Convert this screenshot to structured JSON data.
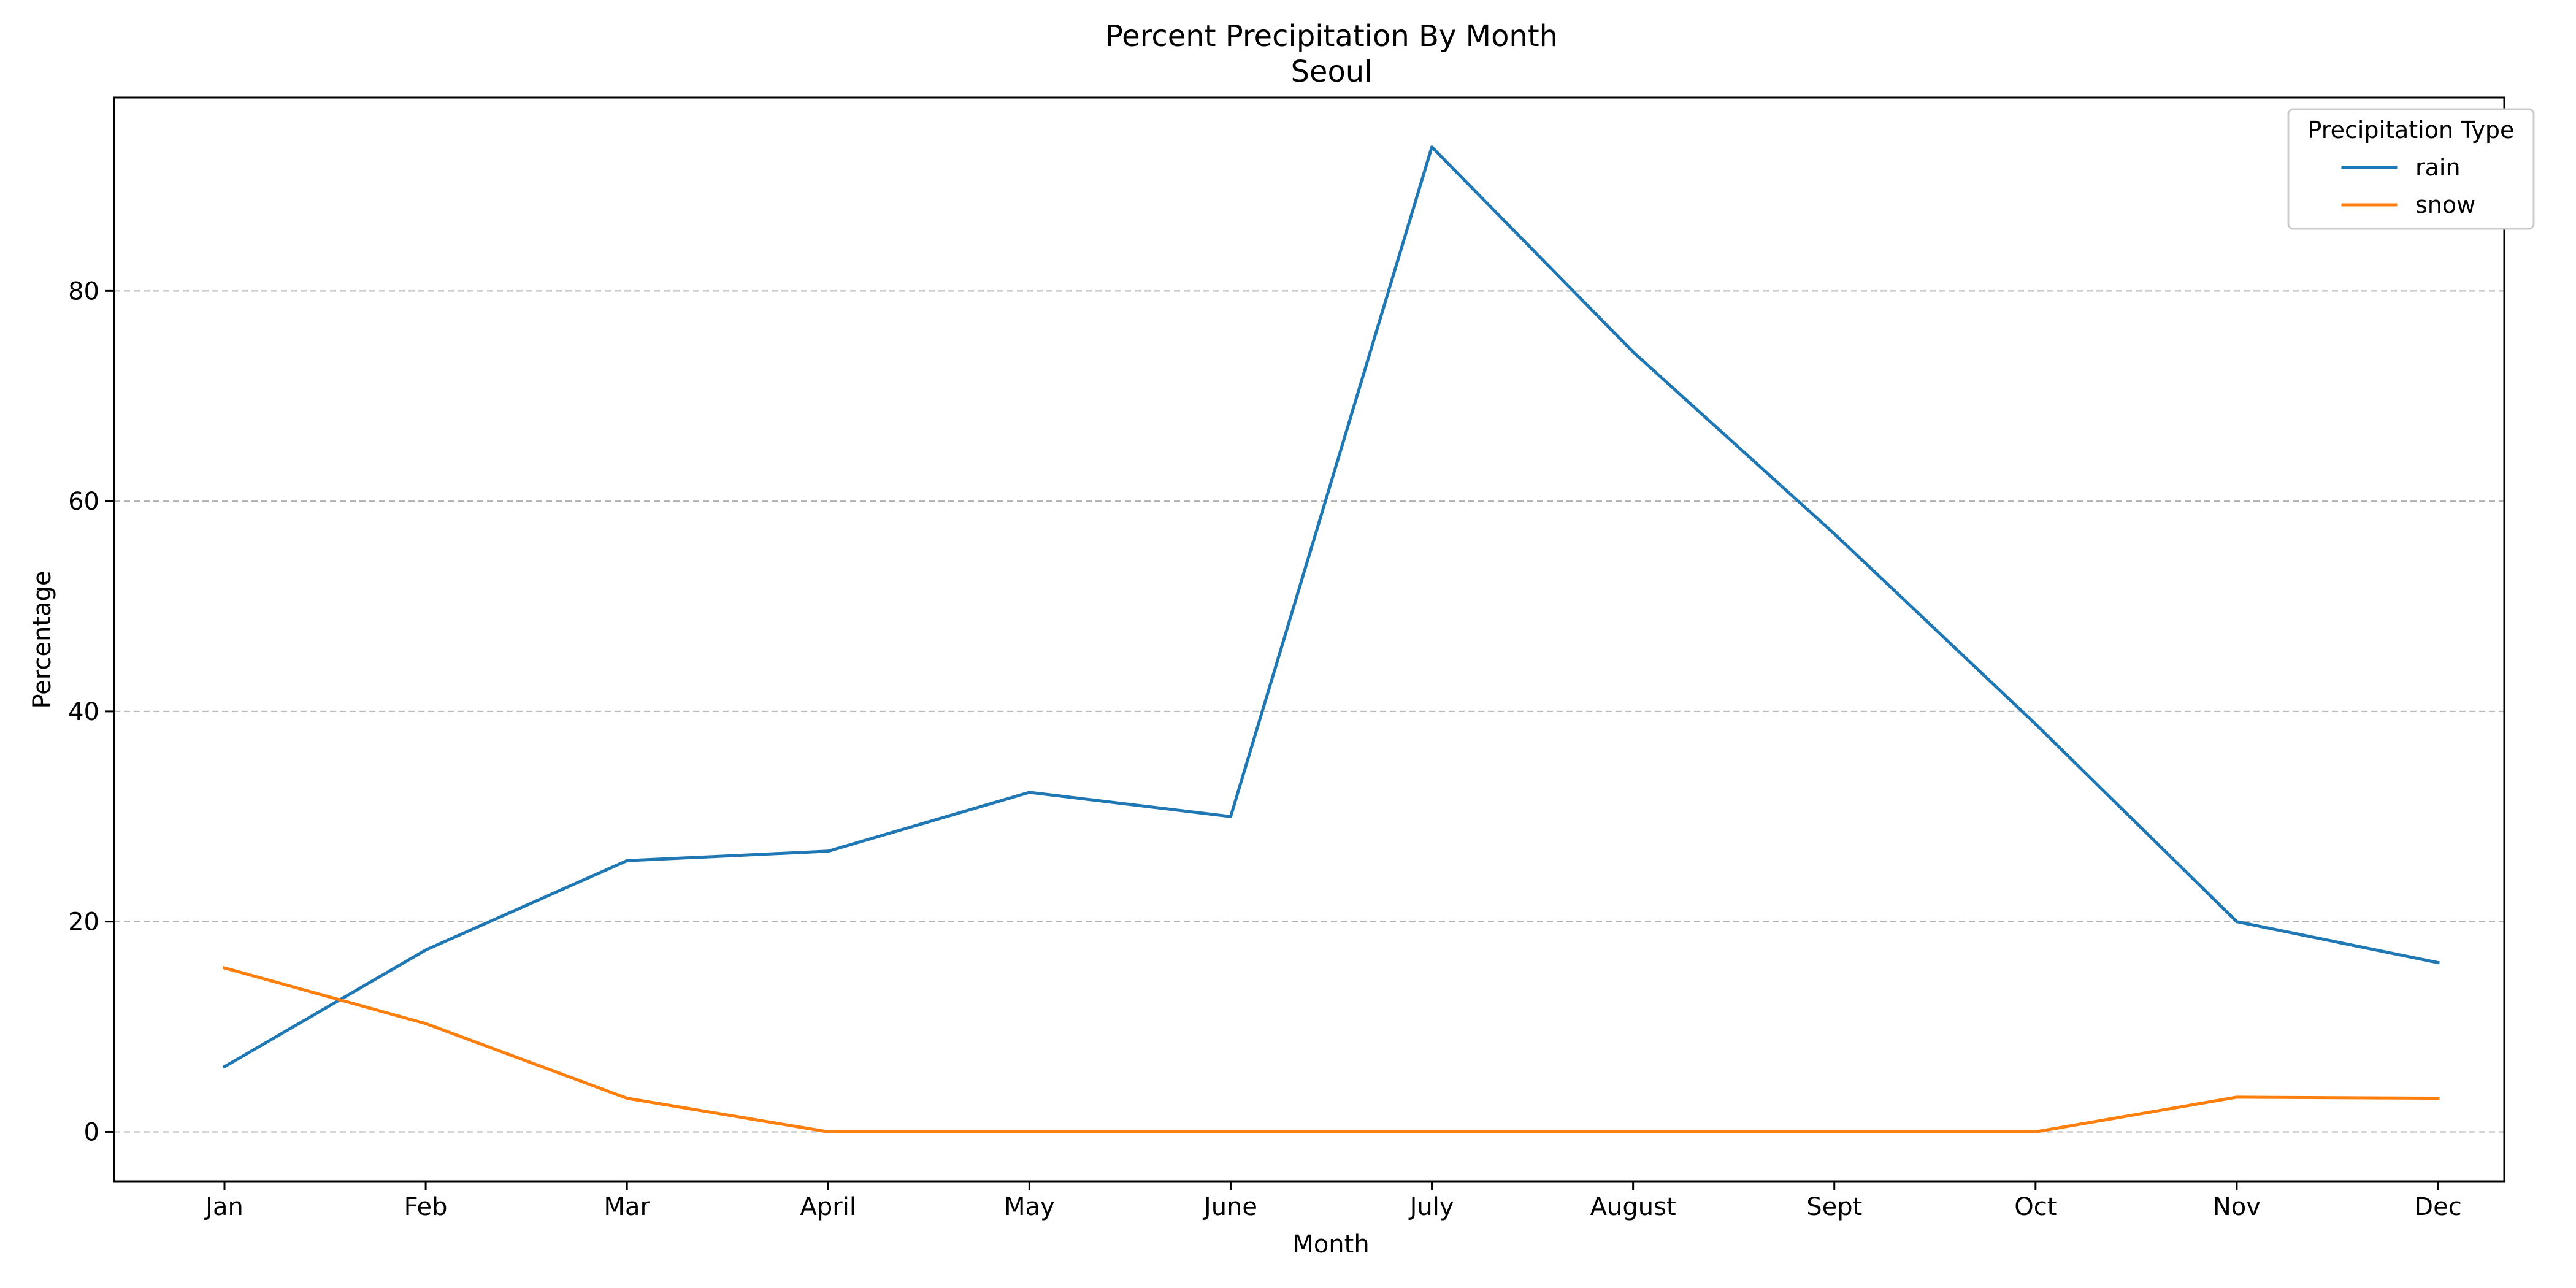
{
  "chart_data": {
    "type": "line",
    "title": "Percent Precipitation By Month",
    "subtitle": "Seoul",
    "xlabel": "Month",
    "ylabel": "Percentage",
    "categories": [
      "Jan",
      "Feb",
      "Mar",
      "April",
      "May",
      "June",
      "July",
      "August",
      "Sept",
      "Oct",
      "Nov",
      "Dec"
    ],
    "ylim": [
      -4.7,
      98.4
    ],
    "yticks": [
      0,
      20,
      40,
      60,
      80
    ],
    "grid": "y-dashed",
    "legend": {
      "title": "Precipitation Type",
      "placement": "top-right"
    },
    "series": [
      {
        "name": "rain",
        "color": "#1f77b4",
        "values": [
          6.2,
          17.3,
          25.8,
          26.7,
          32.3,
          30.0,
          93.7,
          74.2,
          56.9,
          38.8,
          20.0,
          16.1
        ]
      },
      {
        "name": "snow",
        "color": "#ff7f0e",
        "values": [
          15.6,
          10.3,
          3.2,
          0.0,
          0.0,
          0.0,
          0.0,
          0.0,
          0.0,
          0.0,
          3.3,
          3.2
        ]
      }
    ]
  }
}
